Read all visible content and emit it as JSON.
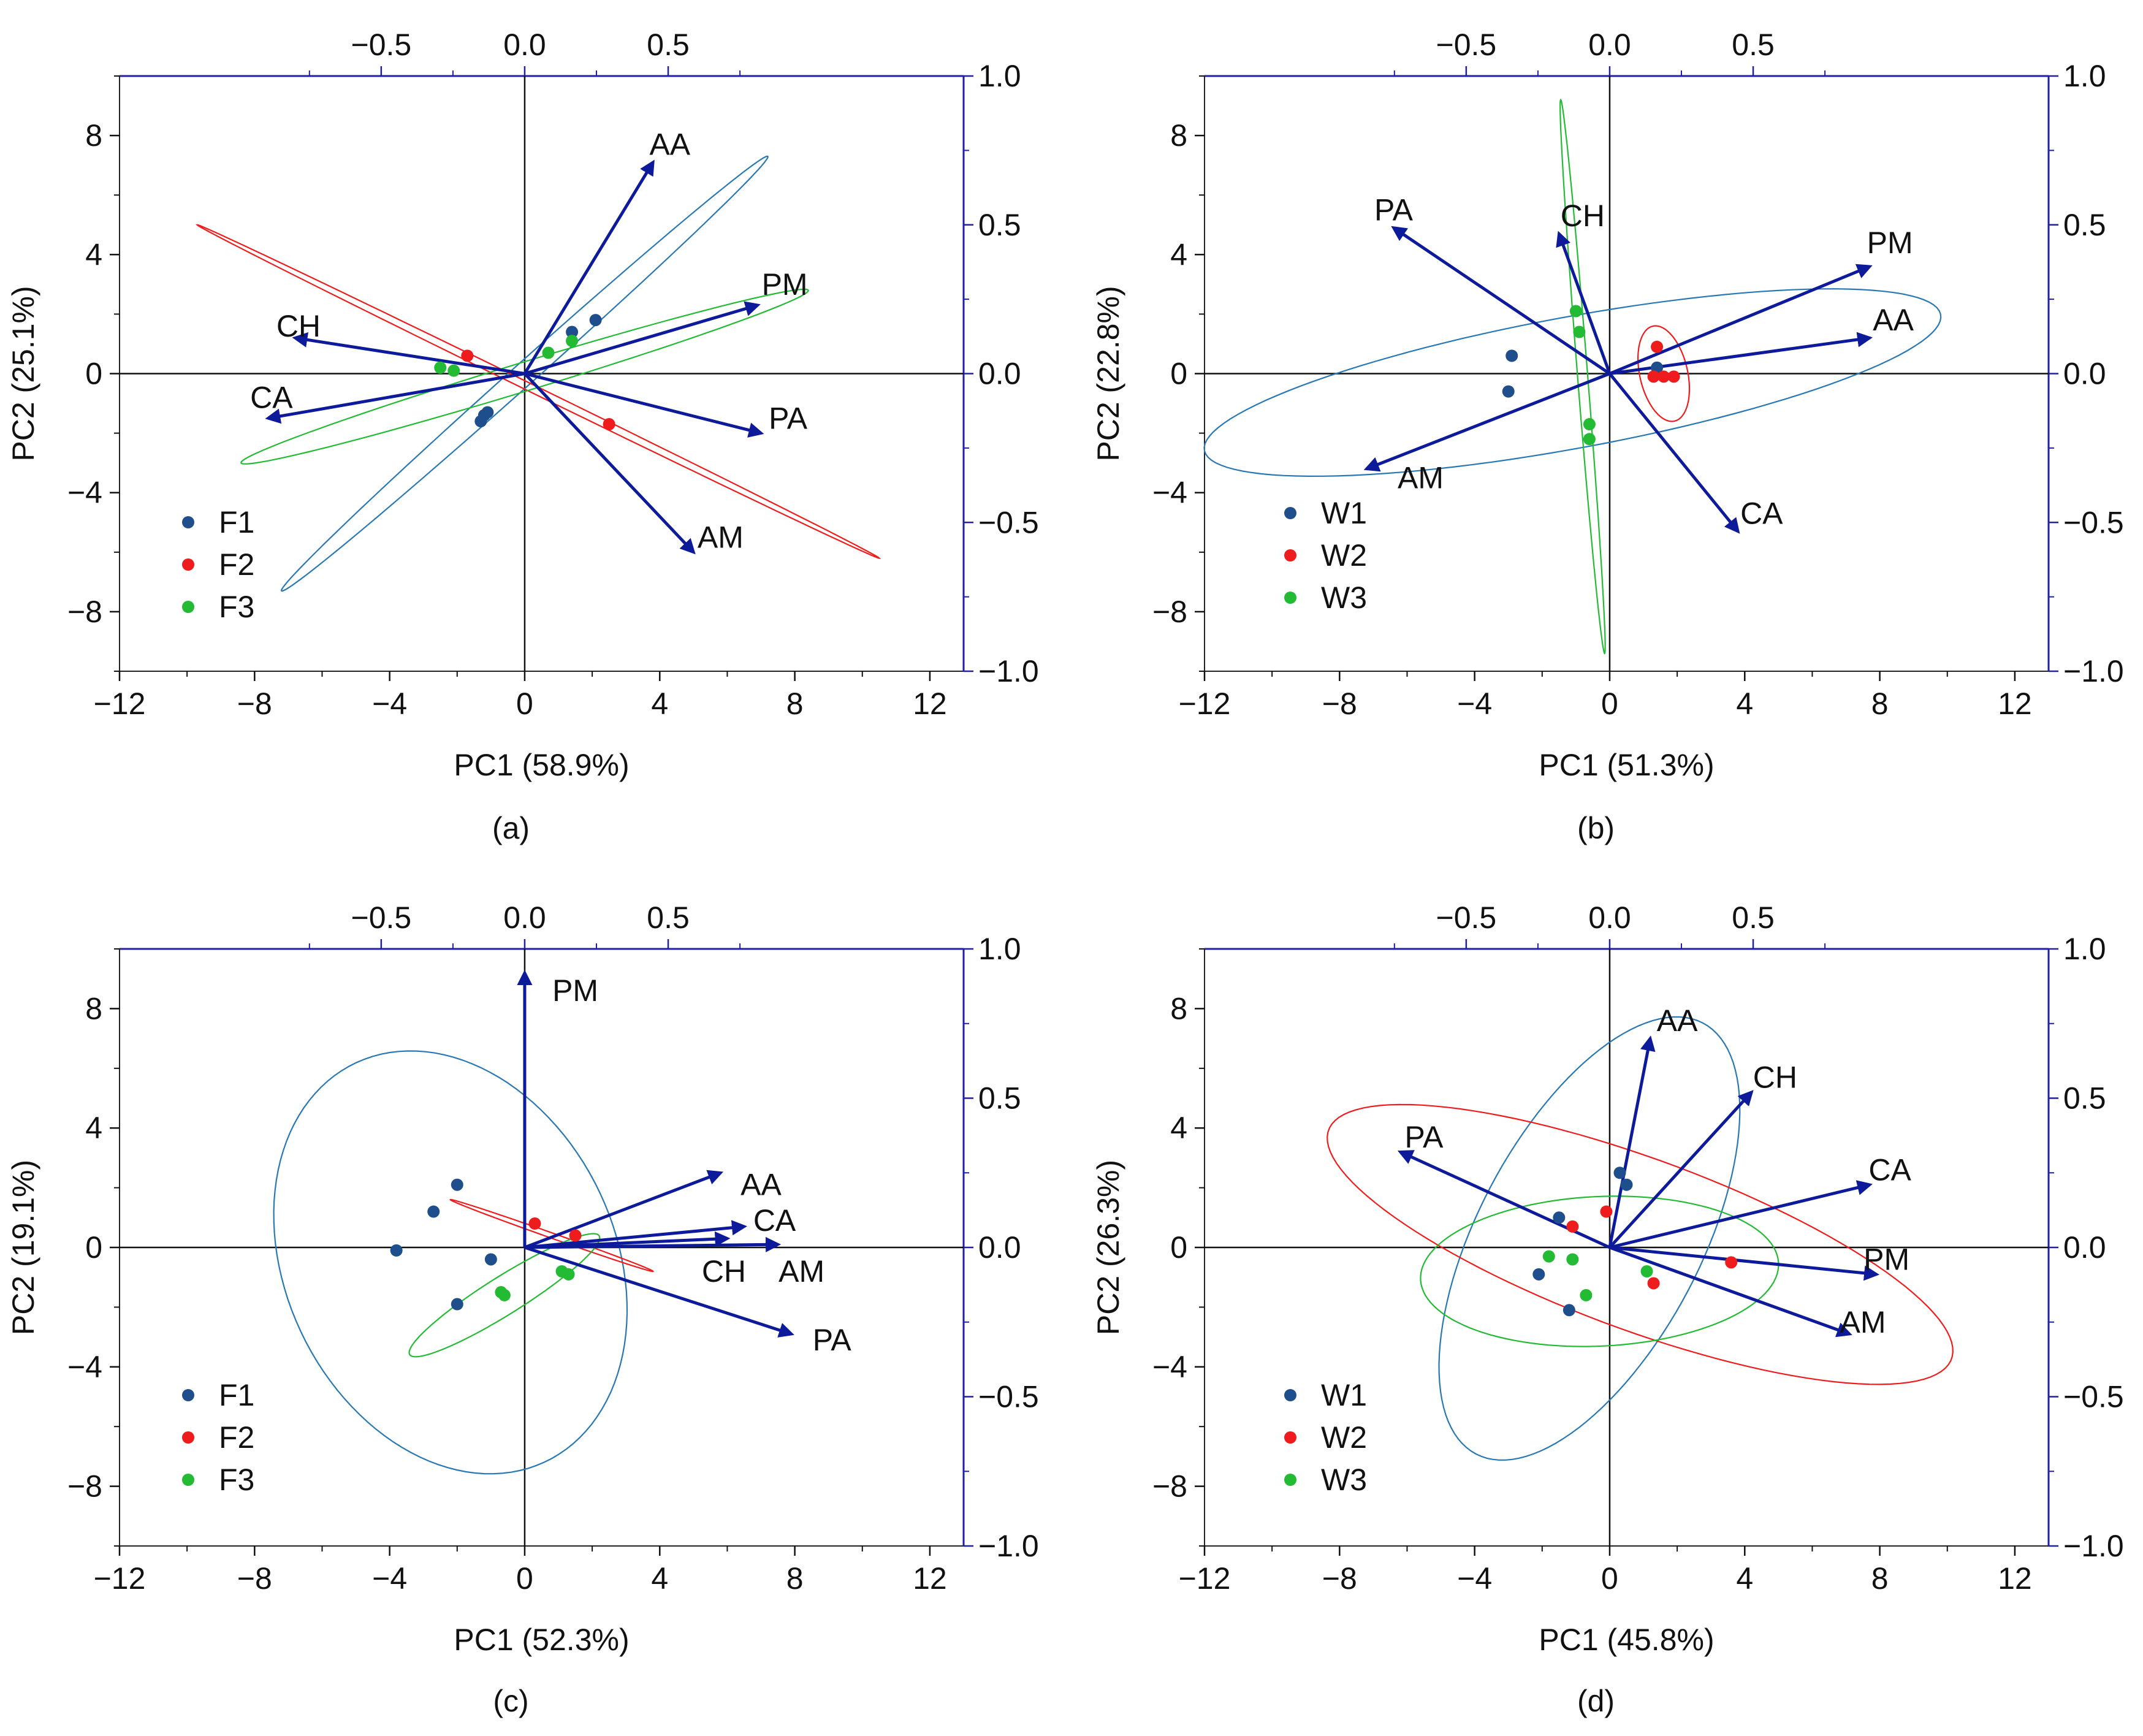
{
  "colors": {
    "F1": "#1f4e8c",
    "W1": "#1f4e8c",
    "F2": "#ee1c1c",
    "W2": "#ee1c1c",
    "F3": "#22bb33",
    "W3": "#22bb33",
    "arrow": "#0d1a99",
    "right_axis": "#2020a0",
    "ellipse_blue": "#2878b4"
  },
  "chart_data": [
    {
      "type": "scatter",
      "panel": "(a)",
      "xlabel": "PC1 (58.9%)",
      "ylabel": "PC2 (25.1%)",
      "xlim": [
        -12,
        13
      ],
      "ylim": [
        -10,
        10
      ],
      "x_ticks": [
        "-12",
        "-8",
        "-4",
        "0",
        "4",
        "8",
        "12"
      ],
      "y_ticks": [
        "-8",
        "-4",
        "0",
        "4",
        "8"
      ],
      "top_ticks": [
        "-0.5",
        "0.0",
        "0.5"
      ],
      "right_ticks": [
        "-1.0",
        "-0.5",
        "0.0",
        "0.5",
        "1.0"
      ],
      "loadings": [
        {
          "name": "AA",
          "x": 3.8,
          "y": 7.1,
          "lx": 4.3,
          "ly": 7.7
        },
        {
          "name": "PM",
          "x": 6.9,
          "y": 2.3,
          "lx": 7.7,
          "ly": 3.0
        },
        {
          "name": "PA",
          "x": 7.0,
          "y": -2.0,
          "lx": 7.8,
          "ly": -1.5
        },
        {
          "name": "AM",
          "x": 5.0,
          "y": -6.0,
          "lx": 5.8,
          "ly": -5.5
        },
        {
          "name": "CH",
          "x": -6.8,
          "y": 1.2,
          "lx": -6.7,
          "ly": 1.6
        },
        {
          "name": "CA",
          "x": -7.6,
          "y": -1.5,
          "lx": -7.5,
          "ly": -0.8
        }
      ],
      "series": [
        {
          "name": "F1",
          "key": "F1",
          "x": [
            -1.2,
            -1.1,
            -1.3,
            1.4,
            2.1
          ],
          "y": [
            -1.4,
            -1.3,
            -1.6,
            1.4,
            1.8
          ]
        },
        {
          "name": "F2",
          "key": "F2",
          "x": [
            -1.7,
            2.5
          ],
          "y": [
            0.6,
            -1.7
          ]
        },
        {
          "name": "F3",
          "key": "F3",
          "x": [
            -2.5,
            -2.1,
            0.7,
            1.4
          ],
          "y": [
            0.2,
            0.1,
            0.7,
            1.1
          ]
        }
      ],
      "ellipses": [
        {
          "key": "F1",
          "cx": 0.0,
          "cy": 0.0,
          "ax": [
            7.2,
            7.3
          ],
          "bx": [
            -0.25,
            0.25
          ]
        },
        {
          "key": "F2",
          "cx": 0.4,
          "cy": -0.6,
          "ax": [
            10.1,
            -5.6
          ],
          "bx": [
            0.06,
            0.11
          ]
        },
        {
          "key": "F3",
          "cx": 0.0,
          "cy": -0.1,
          "ax": [
            8.4,
            2.9
          ],
          "bx": [
            -0.15,
            0.45
          ]
        }
      ],
      "legend": [
        "F1",
        "F2",
        "F3"
      ],
      "caption": "(a)"
    },
    {
      "type": "scatter",
      "panel": "(b)",
      "xlabel": "PC1 (51.3%)",
      "ylabel": "PC2 (22.8%)",
      "xlim": [
        -12,
        13
      ],
      "ylim": [
        -10,
        10
      ],
      "x_ticks": [
        "-12",
        "-8",
        "-4",
        "0",
        "4",
        "8",
        "12"
      ],
      "y_ticks": [
        "-8",
        "-4",
        "0",
        "4",
        "8"
      ],
      "top_ticks": [
        "-0.5",
        "0.0",
        "0.5"
      ],
      "right_ticks": [
        "-1.0",
        "-0.5",
        "0.0",
        "0.5",
        "1.0"
      ],
      "loadings": [
        {
          "name": "PA",
          "x": -6.4,
          "y": 4.9,
          "lx": -6.4,
          "ly": 5.5
        },
        {
          "name": "CH",
          "x": -1.5,
          "y": 4.7,
          "lx": -0.8,
          "ly": 5.3
        },
        {
          "name": "PM",
          "x": 7.7,
          "y": 3.6,
          "lx": 8.3,
          "ly": 4.4
        },
        {
          "name": "AA",
          "x": 7.7,
          "y": 1.2,
          "lx": 8.4,
          "ly": 1.8
        },
        {
          "name": "AM",
          "x": -7.2,
          "y": -3.2,
          "lx": -5.6,
          "ly": -3.5
        },
        {
          "name": "CA",
          "x": 3.8,
          "y": -5.3,
          "lx": 4.5,
          "ly": -4.7
        }
      ],
      "series": [
        {
          "name": "W1",
          "key": "W1",
          "x": [
            -2.9,
            -3.0,
            1.4
          ],
          "y": [
            0.6,
            -0.6,
            0.2
          ]
        },
        {
          "name": "W2",
          "key": "W2",
          "x": [
            1.4,
            1.3,
            1.6,
            1.9
          ],
          "y": [
            0.9,
            -0.1,
            -0.1,
            -0.1
          ]
        },
        {
          "name": "W3",
          "key": "W3",
          "x": [
            -1.0,
            -0.9,
            -0.6,
            -0.6
          ],
          "y": [
            2.1,
            1.4,
            -1.7,
            -2.2
          ]
        }
      ],
      "ellipses": [
        {
          "key": "W1",
          "cx": -1.1,
          "cy": -0.3,
          "ax": [
            10.9,
            2.3
          ],
          "bx": [
            -0.45,
            2.15
          ]
        },
        {
          "key": "W2",
          "cx": 1.6,
          "cy": 0.0,
          "ax": [
            -0.3,
            1.6
          ],
          "bx": [
            0.7,
            0.13
          ]
        },
        {
          "key": "W3",
          "cx": -0.8,
          "cy": -0.1,
          "ax": [
            -0.65,
            9.3
          ],
          "bx": [
            0.15,
            0.01
          ]
        }
      ],
      "legend": [
        "W1",
        "W2",
        "W3"
      ],
      "caption": "(b)"
    },
    {
      "type": "scatter",
      "panel": "(c)",
      "xlabel": "PC1 (52.3%)",
      "ylabel": "PC2 (19.1%)",
      "xlim": [
        -12,
        13
      ],
      "ylim": [
        -10,
        10
      ],
      "x_ticks": [
        "-12",
        "-8",
        "-4",
        "0",
        "4",
        "8",
        "12"
      ],
      "y_ticks": [
        "-8",
        "-4",
        "0",
        "4",
        "8"
      ],
      "top_ticks": [
        "-0.5",
        "0.0",
        "0.5"
      ],
      "right_ticks": [
        "-1.0",
        "-0.5",
        "0.0",
        "0.5",
        "1.0"
      ],
      "loadings": [
        {
          "name": "PM",
          "x": 0.0,
          "y": 9.2,
          "lx": 1.5,
          "ly": 8.6
        },
        {
          "name": "AA",
          "x": 5.8,
          "y": 2.5,
          "lx": 7.0,
          "ly": 2.1
        },
        {
          "name": "CA",
          "x": 6.5,
          "y": 0.7,
          "lx": 7.4,
          "ly": 0.9
        },
        {
          "name": "AM",
          "x": 7.5,
          "y": 0.1,
          "lx": 8.2,
          "ly": -0.8
        },
        {
          "name": "CH",
          "x": 6.0,
          "y": 0.3,
          "lx": 5.9,
          "ly": -0.8
        },
        {
          "name": "PA",
          "x": 7.9,
          "y": -2.9,
          "lx": 9.1,
          "ly": -3.1
        }
      ],
      "series": [
        {
          "name": "F1",
          "key": "F1",
          "x": [
            -2.0,
            -2.7,
            -3.8,
            -1.0,
            -2.0
          ],
          "y": [
            2.1,
            1.2,
            -0.1,
            -0.4,
            -1.9
          ]
        },
        {
          "name": "F2",
          "key": "F2",
          "x": [
            0.3,
            1.5
          ],
          "y": [
            0.8,
            0.4
          ]
        },
        {
          "name": "F3",
          "key": "F3",
          "x": [
            -0.7,
            -0.6,
            1.1,
            1.3
          ],
          "y": [
            -1.5,
            -1.6,
            -0.8,
            -0.9
          ]
        }
      ],
      "ellipses": [
        {
          "key": "F1",
          "cx": -2.2,
          "cy": -0.5,
          "ax": [
            2.3,
            -6.9
          ],
          "bx": [
            4.7,
            1.6
          ]
        },
        {
          "key": "F2",
          "cx": 0.8,
          "cy": 0.4,
          "ax": [
            3.0,
            -1.2
          ],
          "bx": [
            0.03,
            0.08
          ]
        },
        {
          "key": "F3",
          "cx": -0.6,
          "cy": -1.6,
          "ax": [
            2.8,
            2.0
          ],
          "bx": [
            -0.35,
            0.5
          ]
        }
      ],
      "legend": [
        "F1",
        "F2",
        "F3"
      ],
      "caption": "(c)"
    },
    {
      "type": "scatter",
      "panel": "(d)",
      "xlabel": "PC1 (45.8%)",
      "ylabel": "PC2 (26.3%)",
      "xlim": [
        -12,
        13
      ],
      "ylim": [
        -10,
        10
      ],
      "x_ticks": [
        "-12",
        "-8",
        "-4",
        "0",
        "4",
        "8",
        "12"
      ],
      "y_ticks": [
        "-8",
        "-4",
        "0",
        "4",
        "8"
      ],
      "top_ticks": [
        "-0.5",
        "0.0",
        "0.5"
      ],
      "right_ticks": [
        "-1.0",
        "-0.5",
        "0.0",
        "0.5",
        "1.0"
      ],
      "loadings": [
        {
          "name": "AA",
          "x": 1.2,
          "y": 7.0,
          "lx": 2.0,
          "ly": 7.6
        },
        {
          "name": "CH",
          "x": 4.2,
          "y": 5.2,
          "lx": 4.9,
          "ly": 5.7
        },
        {
          "name": "PA",
          "x": -6.2,
          "y": 3.2,
          "lx": -5.5,
          "ly": 3.7
        },
        {
          "name": "CA",
          "x": 7.7,
          "y": 2.1,
          "lx": 8.3,
          "ly": 2.6
        },
        {
          "name": "PM",
          "x": 7.9,
          "y": -0.9,
          "lx": 8.2,
          "ly": -0.4
        },
        {
          "name": "AM",
          "x": 7.1,
          "y": -2.9,
          "lx": 7.5,
          "ly": -2.5
        }
      ],
      "series": [
        {
          "name": "W1",
          "key": "W1",
          "x": [
            0.3,
            0.5,
            -1.5,
            -2.1,
            -1.2
          ],
          "y": [
            2.5,
            2.1,
            1.0,
            -0.9,
            -2.1
          ]
        },
        {
          "name": "W2",
          "key": "W2",
          "x": [
            -0.1,
            -1.1,
            3.6,
            1.3
          ],
          "y": [
            1.2,
            0.7,
            -0.5,
            -1.2
          ]
        },
        {
          "name": "W3",
          "key": "W3",
          "x": [
            -1.8,
            -1.1,
            1.1,
            -0.7
          ],
          "y": [
            -0.3,
            -0.4,
            -0.8,
            -1.6
          ]
        }
      ],
      "ellipses": [
        {
          "key": "W1",
          "cx": -0.6,
          "cy": 0.3,
          "ax": [
            3.2,
            7.3
          ],
          "bx": [
            -3.1,
            1.35
          ]
        },
        {
          "key": "W2",
          "cx": 0.9,
          "cy": 0.1,
          "ax": [
            9.2,
            -3.9
          ],
          "bx": [
            1.1,
            2.6
          ]
        },
        {
          "key": "W3",
          "cx": -0.3,
          "cy": -0.8,
          "ax": [
            5.3,
            0.3
          ],
          "bx": [
            -0.15,
            2.5
          ]
        }
      ],
      "legend": [
        "W1",
        "W2",
        "W3"
      ],
      "caption": "(d)"
    }
  ]
}
